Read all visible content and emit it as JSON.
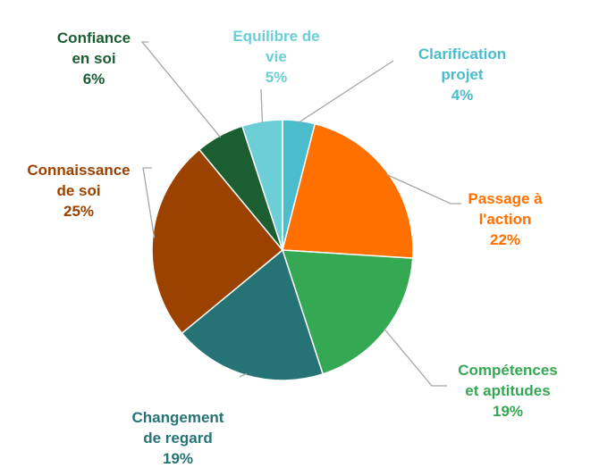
{
  "chart_data": {
    "type": "pie",
    "title": "",
    "slices": [
      {
        "label_lines": [
          "Clarification",
          "projet"
        ],
        "pct_label": "4%",
        "value": 4,
        "color": "#4bbccc",
        "label_color": "#4bbccc"
      },
      {
        "label_lines": [
          "Passage à",
          "l'action"
        ],
        "pct_label": "22%",
        "value": 22,
        "color": "#ff7000",
        "label_color": "#ff7000"
      },
      {
        "label_lines": [
          "Compétences",
          "et aptitudes"
        ],
        "pct_label": "19%",
        "value": 19,
        "color": "#35a853",
        "label_color": "#35a853"
      },
      {
        "label_lines": [
          "Changement",
          "de regard"
        ],
        "pct_label": "19%",
        "value": 19,
        "color": "#267376",
        "label_color": "#267376"
      },
      {
        "label_lines": [
          "Connaissance",
          "de soi"
        ],
        "pct_label": "25%",
        "value": 25,
        "color": "#9c4200",
        "label_color": "#9c4200"
      },
      {
        "label_lines": [
          "Confiance",
          "en soi"
        ],
        "pct_label": "6%",
        "value": 6,
        "color": "#1b5e32",
        "label_color": "#1b5e32"
      },
      {
        "label_lines": [
          "Equilibre de",
          "vie"
        ],
        "pct_label": "5%",
        "value": 5,
        "color": "#6ccfd6",
        "label_color": "#6ccfd6"
      }
    ],
    "legend": "none",
    "leader_line_color": "#a6a6a6"
  }
}
